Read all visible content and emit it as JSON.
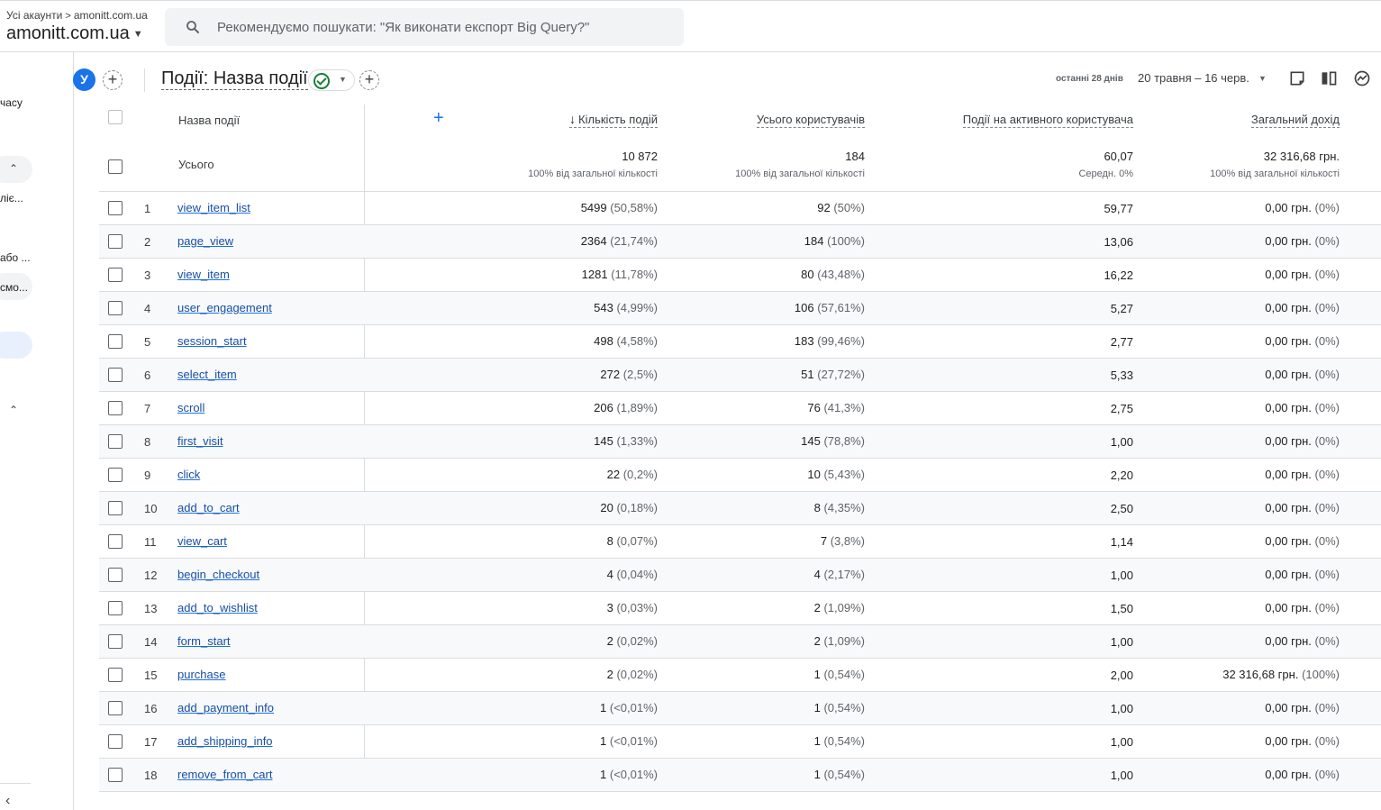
{
  "header": {
    "breadcrumb_root": "Усі акаунти",
    "breadcrumb_sep": ">",
    "breadcrumb_property": "amonitt.com.ua",
    "account_name": "amonitt.com.ua",
    "search_placeholder": "Рекомендуємо пошукати: \"Як виконати експорт Big Query?\""
  },
  "leftnav": {
    "items": [
      "часу",
      "лiє...",
      "або ...",
      "смо..."
    ]
  },
  "toolbar": {
    "avatar_letter": "У",
    "report_title": "Події: Назва події",
    "date_label": "останні 28 днів",
    "date_range": "20 травня – 16 черв."
  },
  "table": {
    "header_name": "Назва події",
    "columns": [
      "Кількість подій",
      "Усього користувачів",
      "Події на активного користувача",
      "Загальний дохід"
    ],
    "totals": {
      "label": "Усього",
      "values": [
        "10 872",
        "184",
        "60,07",
        "32 316,68 грн."
      ],
      "subs": [
        "100% від загальної кількості",
        "100% від загальної кількості",
        "Середн. 0%",
        "100% від загальної кількості"
      ]
    },
    "rows": [
      {
        "n": "1",
        "name": "view_item_list",
        "events": "5499",
        "events_pct": "(50,58%)",
        "users": "92",
        "users_pct": "(50%)",
        "per_user": "59,77",
        "revenue": "0,00 грн.",
        "revenue_pct": "(0%)"
      },
      {
        "n": "2",
        "name": "page_view",
        "events": "2364",
        "events_pct": "(21,74%)",
        "users": "184",
        "users_pct": "(100%)",
        "per_user": "13,06",
        "revenue": "0,00 грн.",
        "revenue_pct": "(0%)"
      },
      {
        "n": "3",
        "name": "view_item",
        "events": "1281",
        "events_pct": "(11,78%)",
        "users": "80",
        "users_pct": "(43,48%)",
        "per_user": "16,22",
        "revenue": "0,00 грн.",
        "revenue_pct": "(0%)"
      },
      {
        "n": "4",
        "name": "user_engagement",
        "events": "543",
        "events_pct": "(4,99%)",
        "users": "106",
        "users_pct": "(57,61%)",
        "per_user": "5,27",
        "revenue": "0,00 грн.",
        "revenue_pct": "(0%)"
      },
      {
        "n": "5",
        "name": "session_start",
        "events": "498",
        "events_pct": "(4,58%)",
        "users": "183",
        "users_pct": "(99,46%)",
        "per_user": "2,77",
        "revenue": "0,00 грн.",
        "revenue_pct": "(0%)"
      },
      {
        "n": "6",
        "name": "select_item",
        "events": "272",
        "events_pct": "(2,5%)",
        "users": "51",
        "users_pct": "(27,72%)",
        "per_user": "5,33",
        "revenue": "0,00 грн.",
        "revenue_pct": "(0%)"
      },
      {
        "n": "7",
        "name": "scroll",
        "events": "206",
        "events_pct": "(1,89%)",
        "users": "76",
        "users_pct": "(41,3%)",
        "per_user": "2,75",
        "revenue": "0,00 грн.",
        "revenue_pct": "(0%)"
      },
      {
        "n": "8",
        "name": "first_visit",
        "events": "145",
        "events_pct": "(1,33%)",
        "users": "145",
        "users_pct": "(78,8%)",
        "per_user": "1,00",
        "revenue": "0,00 грн.",
        "revenue_pct": "(0%)"
      },
      {
        "n": "9",
        "name": "click",
        "events": "22",
        "events_pct": "(0,2%)",
        "users": "10",
        "users_pct": "(5,43%)",
        "per_user": "2,20",
        "revenue": "0,00 грн.",
        "revenue_pct": "(0%)"
      },
      {
        "n": "10",
        "name": "add_to_cart",
        "events": "20",
        "events_pct": "(0,18%)",
        "users": "8",
        "users_pct": "(4,35%)",
        "per_user": "2,50",
        "revenue": "0,00 грн.",
        "revenue_pct": "(0%)"
      },
      {
        "n": "11",
        "name": "view_cart",
        "events": "8",
        "events_pct": "(0,07%)",
        "users": "7",
        "users_pct": "(3,8%)",
        "per_user": "1,14",
        "revenue": "0,00 грн.",
        "revenue_pct": "(0%)"
      },
      {
        "n": "12",
        "name": "begin_checkout",
        "events": "4",
        "events_pct": "(0,04%)",
        "users": "4",
        "users_pct": "(2,17%)",
        "per_user": "1,00",
        "revenue": "0,00 грн.",
        "revenue_pct": "(0%)"
      },
      {
        "n": "13",
        "name": "add_to_wishlist",
        "events": "3",
        "events_pct": "(0,03%)",
        "users": "2",
        "users_pct": "(1,09%)",
        "per_user": "1,50",
        "revenue": "0,00 грн.",
        "revenue_pct": "(0%)"
      },
      {
        "n": "14",
        "name": "form_start",
        "events": "2",
        "events_pct": "(0,02%)",
        "users": "2",
        "users_pct": "(1,09%)",
        "per_user": "1,00",
        "revenue": "0,00 грн.",
        "revenue_pct": "(0%)"
      },
      {
        "n": "15",
        "name": "purchase",
        "events": "2",
        "events_pct": "(0,02%)",
        "users": "1",
        "users_pct": "(0,54%)",
        "per_user": "2,00",
        "revenue": "32 316,68 грн.",
        "revenue_pct": "(100%)"
      },
      {
        "n": "16",
        "name": "add_payment_info",
        "events": "1",
        "events_pct": "(<0,01%)",
        "users": "1",
        "users_pct": "(0,54%)",
        "per_user": "1,00",
        "revenue": "0,00 грн.",
        "revenue_pct": "(0%)"
      },
      {
        "n": "17",
        "name": "add_shipping_info",
        "events": "1",
        "events_pct": "(<0,01%)",
        "users": "1",
        "users_pct": "(0,54%)",
        "per_user": "1,00",
        "revenue": "0,00 грн.",
        "revenue_pct": "(0%)"
      },
      {
        "n": "18",
        "name": "remove_from_cart",
        "events": "1",
        "events_pct": "(<0,01%)",
        "users": "1",
        "users_pct": "(0,54%)",
        "per_user": "1,00",
        "revenue": "0,00 грн.",
        "revenue_pct": "(0%)"
      }
    ]
  }
}
